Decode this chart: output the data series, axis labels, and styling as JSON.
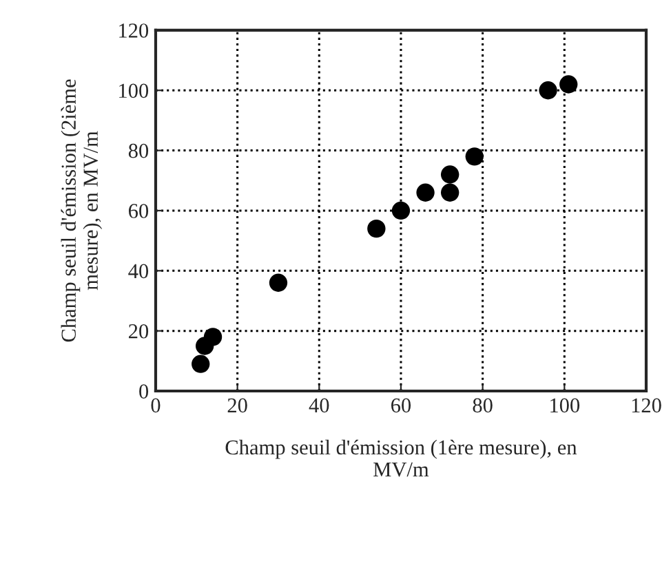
{
  "chart_data": {
    "type": "scatter",
    "xlabel": "Champ seuil d'émission (1ère mesure), en\nMV/m",
    "ylabel": "Champ seuil d'émission (2ième\nmesure), en MV/m",
    "x": [
      11,
      12,
      14,
      30,
      54,
      60,
      66,
      72,
      72,
      78,
      96,
      101
    ],
    "series": [
      {
        "color": "#000000",
        "values": [
          9,
          15,
          18,
          36,
          54,
          60,
          66,
          66,
          72,
          78,
          100,
          102
        ]
      }
    ],
    "xlim": [
      0,
      120
    ],
    "ylim": [
      0,
      120
    ],
    "xticks": [
      0,
      20,
      40,
      60,
      80,
      100,
      120
    ],
    "yticks": [
      0,
      20,
      40,
      60,
      80,
      100,
      120
    ],
    "grid": true,
    "marker": "circle"
  }
}
